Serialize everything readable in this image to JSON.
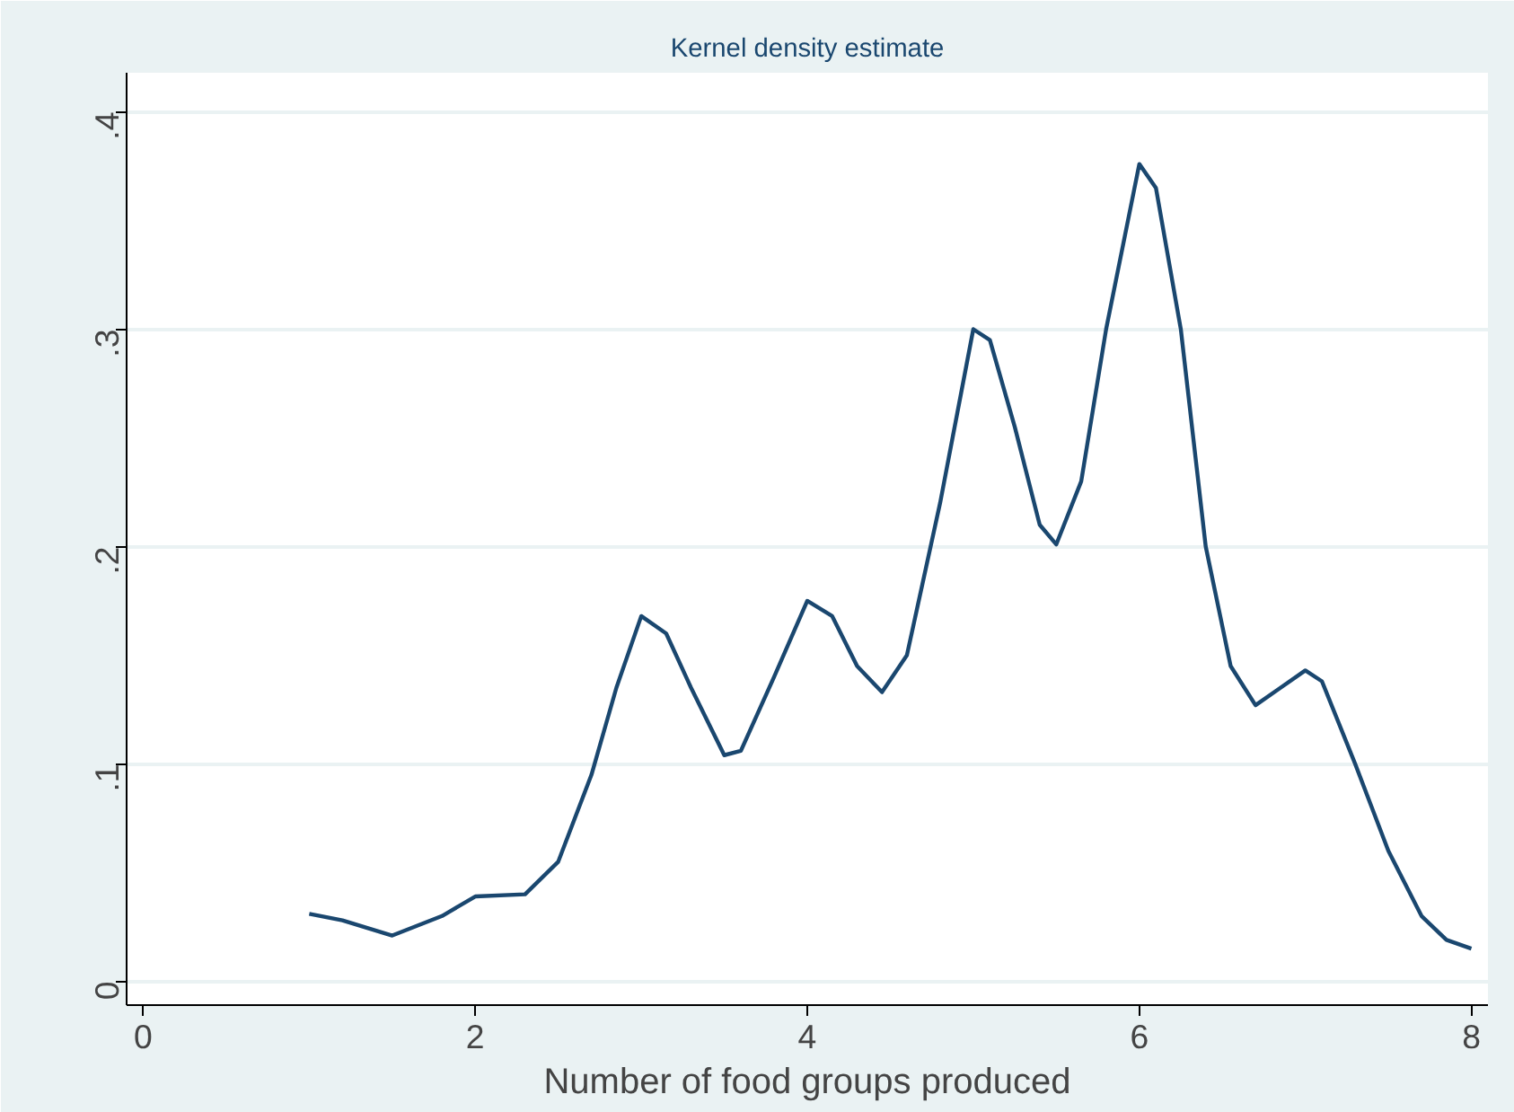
{
  "chart_data": {
    "type": "line",
    "title": "Kernel density estimate",
    "xlabel": "Number of food groups produced",
    "x": [
      1.0,
      1.2,
      1.5,
      1.8,
      2.0,
      2.3,
      2.5,
      2.7,
      2.85,
      3.0,
      3.15,
      3.3,
      3.5,
      3.6,
      3.8,
      4.0,
      4.15,
      4.3,
      4.45,
      4.6,
      4.8,
      5.0,
      5.1,
      5.25,
      5.4,
      5.5,
      5.65,
      5.8,
      6.0,
      6.1,
      6.25,
      6.4,
      6.55,
      6.7,
      6.85,
      7.0,
      7.1,
      7.3,
      7.5,
      7.7,
      7.85,
      8.0
    ],
    "series": [
      {
        "color": "#1a476f",
        "values": [
          0.031,
          0.028,
          0.021,
          0.03,
          0.039,
          0.04,
          0.055,
          0.095,
          0.135,
          0.168,
          0.16,
          0.135,
          0.104,
          0.106,
          0.14,
          0.175,
          0.168,
          0.145,
          0.133,
          0.15,
          0.22,
          0.3,
          0.295,
          0.255,
          0.21,
          0.201,
          0.23,
          0.3,
          0.376,
          0.365,
          0.3,
          0.2,
          0.145,
          0.127,
          0.135,
          0.143,
          0.138,
          0.1,
          0.06,
          0.03,
          0.019,
          0.015
        ]
      }
    ],
    "xlim": [
      -0.1,
      8.1
    ],
    "ylim": [
      -0.011,
      0.418
    ],
    "xticks": [
      0,
      2,
      4,
      6,
      8
    ],
    "yticks": [
      0,
      {
        "value": 0.1,
        "label": ".1"
      },
      {
        "value": 0.2,
        "label": ".2"
      },
      {
        "value": 0.3,
        "label": ".3"
      },
      {
        "value": 0.4,
        "label": ".4"
      }
    ],
    "grid": "y",
    "line_style": "solid"
  }
}
